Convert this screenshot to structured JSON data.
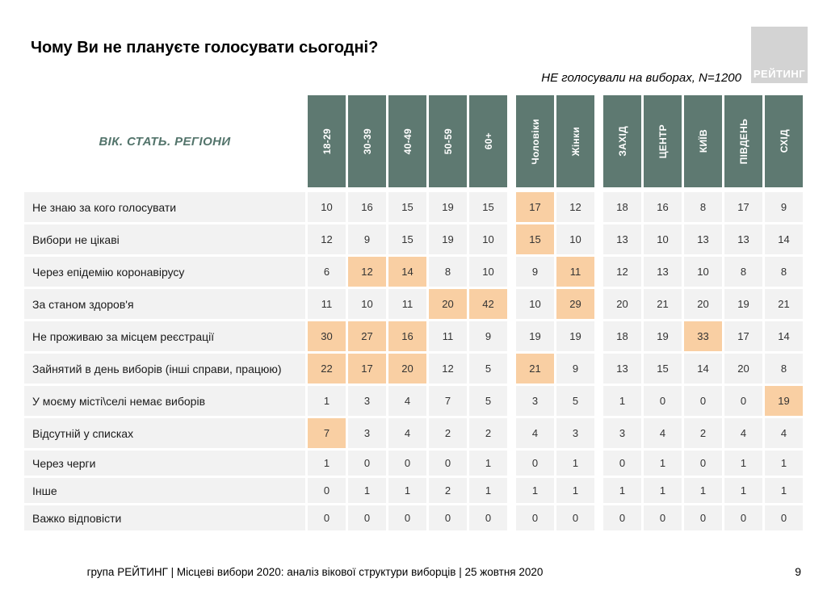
{
  "logo": {
    "text": "РЕЙТИНГ"
  },
  "footer": {
    "text": "група РЕЙТИНГ | Місцеві вибори 2020: аналіз вікової структури виборців | 25 жовтня 2020",
    "page": "9"
  },
  "colors": {
    "header_bg": "#5E7971",
    "accent_text": "#53746B",
    "cell_bg": "#F2F2F2",
    "highlight": "#F9CFA3",
    "logo_bg": "#D3D3D3"
  },
  "chart_data": {
    "type": "table",
    "title": "Чому Ви не плануєте голосувати сьогодні?",
    "subtitle": "НЕ голосували на виборах, N=1200",
    "corner_label": "ВІК. СТАТЬ. РЕГІОНИ",
    "column_groups": [
      {
        "name": "age",
        "columns": [
          "18-29",
          "30-39",
          "40-49",
          "50-59",
          "60+"
        ]
      },
      {
        "name": "gender",
        "columns": [
          "Чоловіки",
          "Жінки"
        ]
      },
      {
        "name": "regions",
        "columns": [
          "ЗАХІД",
          "ЦЕНТР",
          "КИЇВ",
          "ПІВДЕНЬ",
          "СХІД"
        ]
      }
    ],
    "rows": [
      {
        "label": "Не знаю за кого голосувати",
        "values": [
          10,
          16,
          15,
          19,
          15,
          17,
          12,
          18,
          16,
          8,
          17,
          9
        ],
        "highlighted": [
          5
        ]
      },
      {
        "label": "Вибори не цікаві",
        "values": [
          12,
          9,
          15,
          19,
          10,
          15,
          10,
          13,
          10,
          13,
          13,
          14
        ],
        "highlighted": [
          5
        ]
      },
      {
        "label": "Через епідемію коронавірусу",
        "values": [
          6,
          12,
          14,
          8,
          10,
          9,
          11,
          12,
          13,
          10,
          8,
          8
        ],
        "highlighted": [
          1,
          2,
          6
        ]
      },
      {
        "label": "За станом здоров'я",
        "values": [
          11,
          10,
          11,
          20,
          42,
          10,
          29,
          20,
          21,
          20,
          19,
          21
        ],
        "highlighted": [
          3,
          4,
          6
        ]
      },
      {
        "label": "Не проживаю за місцем реєстрації",
        "values": [
          30,
          27,
          16,
          11,
          9,
          19,
          19,
          18,
          19,
          33,
          17,
          14
        ],
        "highlighted": [
          0,
          1,
          2,
          9
        ]
      },
      {
        "label": "Зайнятий в день виборів (інші справи, працюю)",
        "values": [
          22,
          17,
          20,
          12,
          5,
          21,
          9,
          13,
          15,
          14,
          20,
          8
        ],
        "highlighted": [
          0,
          1,
          2,
          5
        ]
      },
      {
        "label": "У моєму місті\\селі немає виборів",
        "values": [
          1,
          3,
          4,
          7,
          5,
          3,
          5,
          1,
          0,
          0,
          0,
          19
        ],
        "highlighted": [
          11
        ]
      },
      {
        "label": "Відсутній у списках",
        "values": [
          7,
          3,
          4,
          2,
          2,
          4,
          3,
          3,
          4,
          2,
          4,
          4
        ],
        "highlighted": [
          0
        ]
      },
      {
        "label": "Через черги",
        "values": [
          1,
          0,
          0,
          0,
          1,
          0,
          1,
          0,
          1,
          0,
          1,
          1
        ],
        "highlighted": []
      },
      {
        "label": "Інше",
        "values": [
          0,
          1,
          1,
          2,
          1,
          1,
          1,
          1,
          1,
          1,
          1,
          1
        ],
        "highlighted": []
      },
      {
        "label": "Важко відповісти",
        "values": [
          0,
          0,
          0,
          0,
          0,
          0,
          0,
          0,
          0,
          0,
          0,
          0
        ],
        "highlighted": []
      }
    ]
  }
}
